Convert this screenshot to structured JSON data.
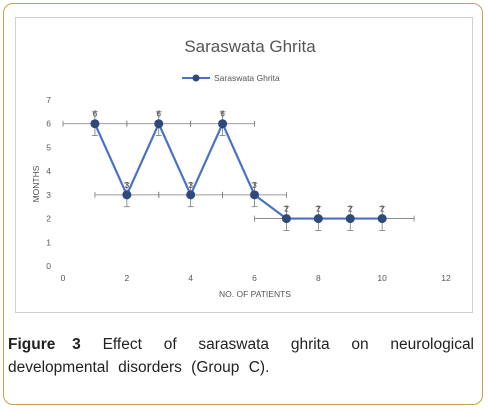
{
  "chart_data": {
    "type": "line",
    "title": "Saraswata Ghrita",
    "xlabel": "NO. OF PATIENTS",
    "ylabel": "MONTHS",
    "xlim": [
      0,
      12
    ],
    "ylim": [
      0,
      7
    ],
    "xticks": [
      0,
      2,
      4,
      6,
      8,
      10,
      12
    ],
    "yticks": [
      0,
      1,
      2,
      3,
      4,
      5,
      6,
      7
    ],
    "legend_position": "top",
    "grid": false,
    "error_bars": true,
    "series": [
      {
        "name": "Saraswata Ghrita",
        "color": "#4a72c4",
        "marker_color": "#2e4a7a",
        "x": [
          1,
          2,
          3,
          4,
          5,
          6,
          7,
          8,
          9,
          10
        ],
        "y": [
          6,
          3,
          6,
          3,
          6,
          3,
          2,
          2,
          2,
          2
        ],
        "labels": [
          "6",
          "3",
          "6",
          "3",
          "6",
          "3",
          "2",
          "2",
          "2",
          "2"
        ]
      }
    ]
  },
  "caption": {
    "label": "Figure 3",
    "text": " Effect of saraswata ghrita on neurological developmental disorders (Group C)."
  }
}
